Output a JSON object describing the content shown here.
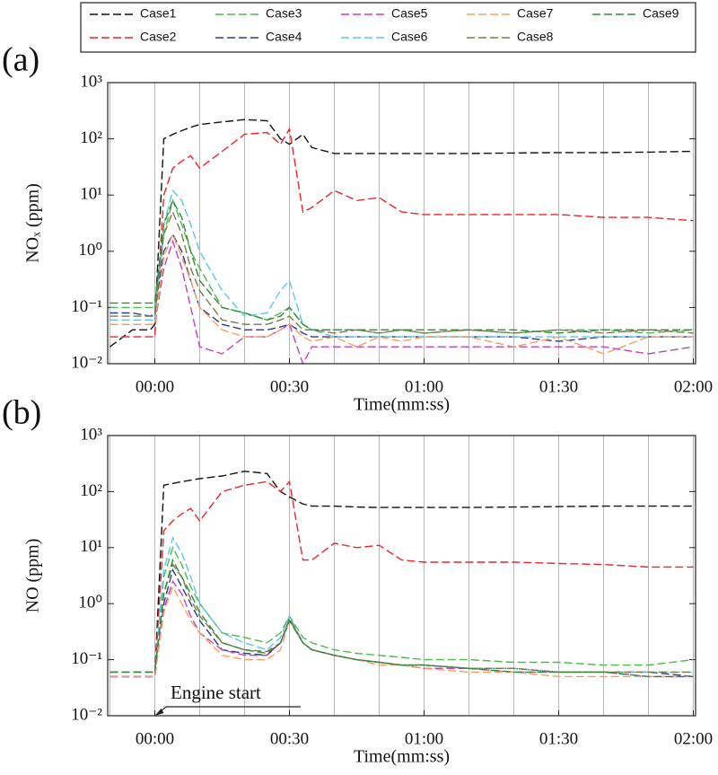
{
  "chart_data": [
    {
      "type": "line",
      "panel_label": "(a)",
      "y_label": "NOₓ (ppm)",
      "x_label": "Time(mm:ss)",
      "log_y": true,
      "legend": "top",
      "xlim": [
        -10.5,
        120.5
      ],
      "xticks": [
        {
          "value": 0,
          "label": "00:00"
        },
        {
          "value": 30,
          "label": "00:30"
        },
        {
          "value": 60,
          "label": "01:00"
        },
        {
          "value": 90,
          "label": "01:30"
        },
        {
          "value": 120,
          "label": "02:00"
        }
      ],
      "xgrid": [
        -10,
        0,
        10,
        20,
        30,
        40,
        50,
        60,
        70,
        80,
        90,
        100,
        110,
        120
      ],
      "ylim": [
        0.01,
        1000
      ],
      "yticks": [
        {
          "value": 0.01,
          "label": "10⁻²"
        },
        {
          "value": 0.1,
          "label": "10⁻¹"
        },
        {
          "value": 1,
          "label": "10⁰"
        },
        {
          "value": 10,
          "label": "10¹"
        },
        {
          "value": 100,
          "label": "10²"
        },
        {
          "value": 1000,
          "label": "10³"
        }
      ],
      "x": [
        -10,
        -5,
        -1,
        0,
        2,
        4,
        6,
        8,
        10,
        15,
        20,
        25,
        28,
        30,
        33,
        35,
        40,
        45,
        50,
        55,
        60,
        70,
        80,
        90,
        100,
        110,
        120
      ],
      "series": [
        {
          "name": "Case1",
          "color": "#111111",
          "values": [
            0.02,
            0.04,
            0.04,
            0.05,
            100,
            120,
            140,
            160,
            180,
            200,
            220,
            210,
            100,
            80,
            120,
            70,
            55,
            55,
            55,
            55,
            55,
            55,
            56,
            57,
            57,
            58,
            60
          ]
        },
        {
          "name": "Case2",
          "color": "#e8262a",
          "values": [
            0.03,
            0.03,
            0.03,
            0.03,
            10,
            30,
            40,
            50,
            30,
            60,
            120,
            130,
            80,
            150,
            5,
            6,
            12,
            8,
            9,
            5,
            4.5,
            4.5,
            4.5,
            4.5,
            4,
            4,
            3.5
          ]
        },
        {
          "name": "Case3",
          "color": "#4cbb4a",
          "values": [
            0.1,
            0.1,
            0.1,
            0.1,
            2,
            8,
            3,
            1,
            0.5,
            0.1,
            0.08,
            0.06,
            0.08,
            0.1,
            0.05,
            0.04,
            0.04,
            0.04,
            0.035,
            0.04,
            0.035,
            0.04,
            0.035,
            0.04,
            0.04,
            0.035,
            0.04
          ]
        },
        {
          "name": "Case4",
          "color": "#2b3a8f",
          "values": [
            0.08,
            0.08,
            0.07,
            0.08,
            1,
            2,
            1,
            0.3,
            0.1,
            0.05,
            0.04,
            0.04,
            0.045,
            0.05,
            0.035,
            0.03,
            0.03,
            0.03,
            0.03,
            0.03,
            0.03,
            0.03,
            0.03,
            0.025,
            0.03,
            0.03,
            0.03
          ]
        },
        {
          "name": "Case5",
          "color": "#c63fc6",
          "values": [
            0.05,
            0.05,
            0.05,
            0.05,
            0.5,
            1.5,
            0.5,
            0.1,
            0.02,
            0.015,
            0.03,
            0.03,
            0.04,
            0.05,
            0.01,
            0.02,
            0.02,
            0.02,
            0.02,
            0.02,
            0.02,
            0.02,
            0.02,
            0.02,
            0.02,
            0.015,
            0.02
          ]
        },
        {
          "name": "Case6",
          "color": "#5bc8e8",
          "values": [
            0.06,
            0.06,
            0.06,
            0.06,
            3,
            12,
            8,
            3,
            1,
            0.2,
            0.07,
            0.08,
            0.2,
            0.3,
            0.05,
            0.04,
            0.03,
            0.03,
            0.03,
            0.03,
            0.03,
            0.03,
            0.03,
            0.03,
            0.03,
            0.03,
            0.03
          ]
        },
        {
          "name": "Case7",
          "color": "#f4a060",
          "values": [
            0.05,
            0.05,
            0.05,
            0.05,
            0.8,
            2,
            0.8,
            0.3,
            0.1,
            0.04,
            0.03,
            0.03,
            0.04,
            0.05,
            0.03,
            0.025,
            0.03,
            0.02,
            0.03,
            0.025,
            0.03,
            0.03,
            0.02,
            0.03,
            0.015,
            0.03,
            0.03
          ]
        },
        {
          "name": "Case8",
          "color": "#7a7a4a",
          "values": [
            0.07,
            0.07,
            0.07,
            0.07,
            2,
            5,
            2,
            0.5,
            0.2,
            0.06,
            0.05,
            0.05,
            0.06,
            0.07,
            0.04,
            0.04,
            0.035,
            0.04,
            0.035,
            0.04,
            0.035,
            0.04,
            0.035,
            0.04,
            0.035,
            0.04,
            0.035
          ]
        },
        {
          "name": "Case9",
          "color": "#2f8a3a",
          "values": [
            0.12,
            0.12,
            0.12,
            0.12,
            3,
            8,
            4,
            1,
            0.3,
            0.1,
            0.08,
            0.06,
            0.07,
            0.1,
            0.05,
            0.04,
            0.04,
            0.04,
            0.04,
            0.04,
            0.04,
            0.04,
            0.04,
            0.035,
            0.04,
            0.04,
            0.04
          ]
        }
      ]
    },
    {
      "type": "line",
      "panel_label": "(b)",
      "y_label": "NO (ppm)",
      "x_label": "Time(mm:ss)",
      "log_y": true,
      "annotation": "Engine start",
      "xlim": [
        -10.5,
        120.5
      ],
      "xticks": [
        {
          "value": 0,
          "label": "00:00"
        },
        {
          "value": 30,
          "label": "00:30"
        },
        {
          "value": 60,
          "label": "01:00"
        },
        {
          "value": 90,
          "label": "01:30"
        },
        {
          "value": 120,
          "label": "02:00"
        }
      ],
      "xgrid": [
        -10,
        0,
        10,
        20,
        30,
        40,
        50,
        60,
        70,
        80,
        90,
        100,
        110,
        120
      ],
      "ylim": [
        0.01,
        1000
      ],
      "yticks": [
        {
          "value": 0.01,
          "label": "10⁻²"
        },
        {
          "value": 0.1,
          "label": "10⁻¹"
        },
        {
          "value": 1,
          "label": "10⁰"
        },
        {
          "value": 10,
          "label": "10¹"
        },
        {
          "value": 100,
          "label": "10²"
        },
        {
          "value": 1000,
          "label": "10³"
        }
      ],
      "x": [
        -10,
        -5,
        -1,
        0,
        2,
        4,
        6,
        8,
        10,
        15,
        20,
        25,
        28,
        30,
        33,
        35,
        40,
        45,
        50,
        55,
        60,
        70,
        80,
        90,
        100,
        110,
        120
      ],
      "series": [
        {
          "name": "Case1",
          "color": "#111111",
          "values": [
            0.05,
            0.05,
            0.05,
            0.05,
            130,
            140,
            150,
            160,
            170,
            190,
            230,
            210,
            100,
            80,
            60,
            55,
            55,
            53,
            52,
            52,
            52,
            52,
            53,
            54,
            55,
            55,
            55
          ]
        },
        {
          "name": "Case2",
          "color": "#e8262a",
          "values": [
            0.05,
            0.05,
            0.05,
            0.05,
            20,
            30,
            40,
            50,
            30,
            100,
            130,
            150,
            100,
            150,
            6,
            6,
            12,
            10,
            11,
            6,
            5.5,
            5.5,
            5.5,
            5.2,
            5,
            4.5,
            4.5
          ]
        },
        {
          "name": "Case3",
          "color": "#4cbb4a",
          "values": [
            0.06,
            0.06,
            0.06,
            0.06,
            3,
            10,
            5,
            2,
            1,
            0.3,
            0.25,
            0.2,
            0.3,
            0.6,
            0.25,
            0.2,
            0.15,
            0.13,
            0.12,
            0.11,
            0.1,
            0.1,
            0.09,
            0.09,
            0.08,
            0.08,
            0.1
          ]
        },
        {
          "name": "Case4",
          "color": "#2b3a8f",
          "values": [
            0.05,
            0.05,
            0.05,
            0.05,
            1,
            4,
            2,
            1,
            0.5,
            0.15,
            0.13,
            0.12,
            0.2,
            0.5,
            0.2,
            0.15,
            0.12,
            0.1,
            0.09,
            0.08,
            0.08,
            0.07,
            0.07,
            0.06,
            0.06,
            0.06,
            0.05
          ]
        },
        {
          "name": "Case5",
          "color": "#c63fc6",
          "values": [
            0.05,
            0.05,
            0.05,
            0.05,
            0.8,
            2.5,
            1.5,
            0.6,
            0.3,
            0.15,
            0.12,
            0.12,
            0.2,
            0.5,
            0.2,
            0.15,
            0.12,
            0.1,
            0.09,
            0.08,
            0.07,
            0.07,
            0.06,
            0.06,
            0.06,
            0.05,
            0.05
          ]
        },
        {
          "name": "Case6",
          "color": "#5bc8e8",
          "values": [
            0.06,
            0.06,
            0.06,
            0.06,
            4,
            15,
            8,
            3,
            1,
            0.3,
            0.2,
            0.15,
            0.25,
            0.6,
            0.2,
            0.15,
            0.12,
            0.1,
            0.09,
            0.08,
            0.08,
            0.07,
            0.07,
            0.06,
            0.06,
            0.06,
            0.06
          ]
        },
        {
          "name": "Case7",
          "color": "#f4a060",
          "values": [
            0.05,
            0.05,
            0.05,
            0.05,
            0.7,
            2,
            1,
            0.5,
            0.3,
            0.12,
            0.1,
            0.1,
            0.15,
            0.5,
            0.2,
            0.15,
            0.12,
            0.1,
            0.08,
            0.08,
            0.07,
            0.06,
            0.06,
            0.05,
            0.05,
            0.05,
            0.05
          ]
        },
        {
          "name": "Case8",
          "color": "#7a7a4a",
          "values": [
            0.06,
            0.06,
            0.06,
            0.06,
            1.5,
            5,
            3,
            1.2,
            0.6,
            0.2,
            0.15,
            0.14,
            0.2,
            0.55,
            0.2,
            0.15,
            0.12,
            0.1,
            0.09,
            0.08,
            0.08,
            0.07,
            0.07,
            0.06,
            0.06,
            0.06,
            0.06
          ]
        },
        {
          "name": "Case9",
          "color": "#2f8a3a",
          "values": [
            0.06,
            0.06,
            0.06,
            0.06,
            1.5,
            6,
            3,
            1.5,
            0.7,
            0.2,
            0.15,
            0.13,
            0.2,
            0.5,
            0.2,
            0.15,
            0.12,
            0.1,
            0.09,
            0.08,
            0.08,
            0.07,
            0.06,
            0.06,
            0.06,
            0.05,
            0.05
          ]
        }
      ]
    }
  ]
}
